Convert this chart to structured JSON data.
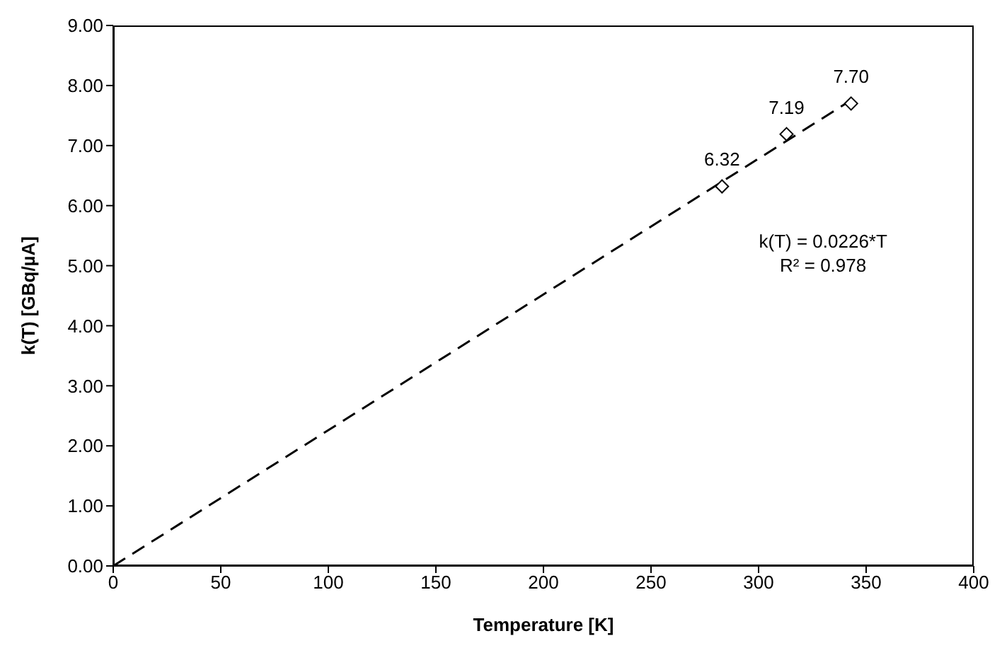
{
  "chart_data": {
    "type": "scatter",
    "xlabel": "Temperature [K]",
    "ylabel": "k(T)  [GBq/µA]",
    "annotations": [
      "k(T) = 0.0226*T",
      "R² = 0.978"
    ],
    "series": [
      {
        "type": "line",
        "x": [
          0,
          345
        ],
        "values": [
          0,
          7.8
        ],
        "color": "#000000",
        "line_style": "dashed",
        "marker": "none"
      },
      {
        "x": [
          283,
          313,
          343
        ],
        "values": [
          6.32,
          7.19,
          7.7
        ],
        "color": "#000000",
        "marker": "diamond",
        "value_labels": [
          "6.32",
          "7.19",
          "7.70"
        ]
      }
    ],
    "xlim": [
      0,
      400
    ],
    "xticks": [
      0,
      50,
      100,
      150,
      200,
      250,
      300,
      350,
      400
    ],
    "ylim": [
      0,
      9
    ],
    "yticks": [
      {
        "value": 0,
        "label": "0.00"
      },
      {
        "value": 1,
        "label": "1.00"
      },
      {
        "value": 2,
        "label": "2.00"
      },
      {
        "value": 3,
        "label": "3.00"
      },
      {
        "value": 4,
        "label": "4.00"
      },
      {
        "value": 5,
        "label": "5.00"
      },
      {
        "value": 6,
        "label": "6.00"
      },
      {
        "value": 7,
        "label": "7.00"
      },
      {
        "value": 8,
        "label": "8.00"
      },
      {
        "value": 9,
        "label": "9.00"
      }
    ],
    "grid": false,
    "legend": false
  }
}
